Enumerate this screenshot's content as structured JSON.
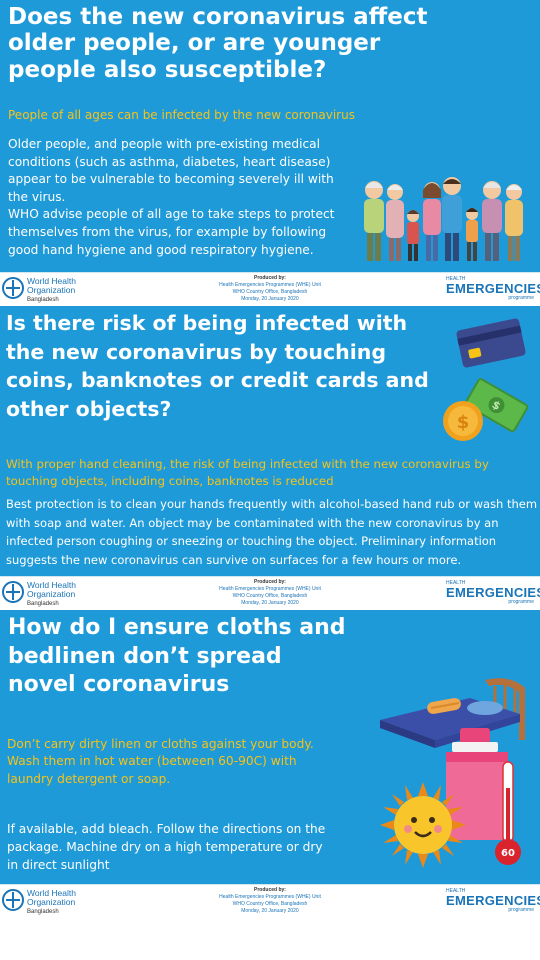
{
  "panels": [
    {
      "title_lines": [
        "Does the new coronavirus affect",
        "older people, or are younger",
        "people also susceptible?"
      ],
      "subtitle_lines": [
        "People of all ages can be infected by the new coronavirus"
      ],
      "body_lines": [
        "Older people, and people with pre-existing medical",
        "conditions (such as asthma, diabetes, heart disease)",
        "appear to be vulnerable to becoming severely ill with",
        "the virus.",
        "WHO advise people of all age to take steps to protect",
        "themselves from the virus, for example by following",
        "good hand hygiene and good respiratory hygiene."
      ]
    },
    {
      "title_lines": [
        "Is there risk of being infected with",
        "the new coronavirus by touching",
        "coins, banknotes or credit cards and",
        "other objects?"
      ],
      "subtitle_lines": [
        "With proper hand cleaning, the risk of being infected with the new coronavirus by",
        "touching objects, including coins, banknotes is reduced"
      ],
      "body_lines": [
        "Best protection is to clean your hands frequently with alcohol-based hand rub or wash them",
        "with soap and water. An object may be contaminated with the new coronavirus by an",
        "infected person coughing or sneezing or touching the object. Preliminary information",
        "suggests the new coronavirus can survive on surfaces for a few hours or more."
      ]
    },
    {
      "title_lines": [
        "How do I ensure cloths and",
        "bedlinen don’t spread",
        "novel coronavirus"
      ],
      "subtitle_lines": [
        "Don’t carry dirty linen or cloths against your body.",
        "Wash them in hot water (between 60-90C) with",
        "laundry detergent or soap."
      ],
      "body_lines": [
        "If available, add bleach. Follow the directions on the",
        "package. Machine dry on a high temperature or dry",
        "in direct sunlight"
      ],
      "thermometer_label": "60"
    }
  ],
  "footer": {
    "who_name_line1": "World Health",
    "who_name_line2": "Organization",
    "who_country": "Bangladesh",
    "produced_by": "Produced by:",
    "produced_unit": "Health Emergencies Programmes (WHE) Unit",
    "produced_office": "WHO Country Office, Bangladesh",
    "produced_date": "Monday, 20 January 2020",
    "he_small": "HEALTH",
    "he_big": "EMERGENCIES",
    "he_prog": "programme"
  },
  "colors": {
    "panel_bg": "#1f9ad9",
    "subtitle": "#f6c316",
    "who_blue": "#1a74b8"
  },
  "icons": [
    "family-illustration",
    "credit-card-icon",
    "banknotes-icon",
    "coin-icon",
    "bed-icon",
    "detergent-bottle-icon",
    "thermometer-icon",
    "sun-icon",
    "who-logo-icon"
  ]
}
